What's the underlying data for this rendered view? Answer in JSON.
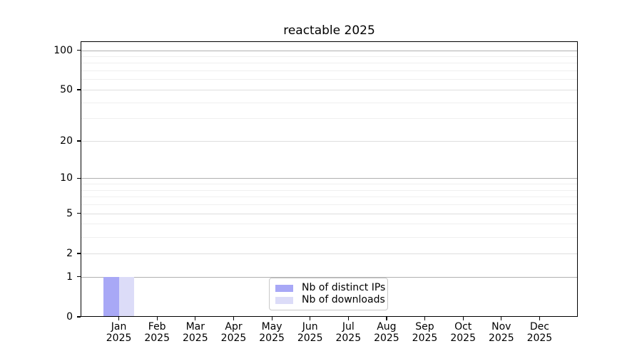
{
  "chart_data": {
    "type": "bar",
    "title": "reactable 2025",
    "categories": [
      "Jan",
      "Feb",
      "Mar",
      "Apr",
      "May",
      "Jun",
      "Jul",
      "Aug",
      "Sep",
      "Oct",
      "Nov",
      "Dec"
    ],
    "x_tick_year": "2025",
    "series": [
      {
        "name": "Nb of distinct IPs",
        "color": "#a8a8f6",
        "values": [
          1,
          0,
          0,
          0,
          0,
          0,
          0,
          0,
          0,
          0,
          0,
          0
        ]
      },
      {
        "name": "Nb of downloads",
        "color": "#dcdcf8",
        "values": [
          1,
          0,
          0,
          0,
          0,
          0,
          0,
          0,
          0,
          0,
          0,
          0
        ]
      }
    ],
    "y_scale": "log1p",
    "y_major_ticks": [
      0,
      1,
      2,
      5,
      10,
      20,
      50,
      100
    ],
    "y_decade_ticks": [
      1,
      10,
      100
    ],
    "y_minor_ticks": [
      3,
      4,
      6,
      7,
      8,
      9,
      30,
      40,
      60,
      70,
      80,
      90
    ],
    "ylim": [
      0,
      117
    ],
    "grid": true,
    "legend_position": "lower center"
  }
}
